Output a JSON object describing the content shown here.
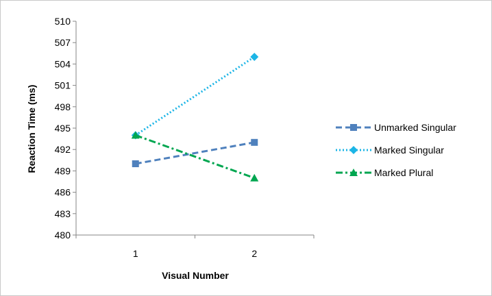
{
  "chart_data": {
    "type": "line",
    "xlabel": "Visual Number",
    "ylabel": "Reaction Time (ms)",
    "categories": [
      "1",
      "2"
    ],
    "ylim": [
      480,
      510
    ],
    "yticks": [
      "480",
      "483",
      "486",
      "489",
      "492",
      "495",
      "498",
      "501",
      "504",
      "507",
      "510"
    ],
    "grid": false,
    "legend_position": "right",
    "series": [
      {
        "name": "Unmarked Singular",
        "values": [
          490,
          493
        ],
        "color": "#4f81bd",
        "marker": "square",
        "dash": "dashed"
      },
      {
        "name": "Marked Singular",
        "values": [
          494,
          505
        ],
        "color": "#1cb5e6",
        "marker": "diamond",
        "dash": "dotted"
      },
      {
        "name": "Marked Plural",
        "values": [
          494,
          488
        ],
        "color": "#00a650",
        "marker": "triangle",
        "dash": "dash-dot"
      }
    ]
  }
}
